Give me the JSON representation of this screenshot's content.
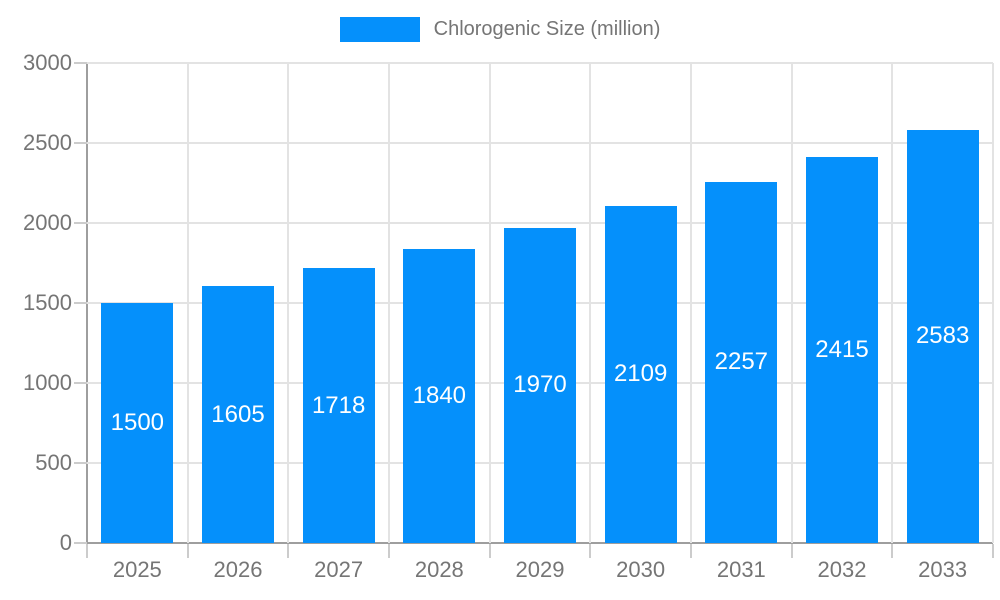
{
  "chart_data": {
    "type": "bar",
    "legend": [
      "Chlorogenic Size (million)"
    ],
    "legend_position": "top",
    "categories": [
      "2025",
      "2026",
      "2027",
      "2028",
      "2029",
      "2030",
      "2031",
      "2032",
      "2033"
    ],
    "values": [
      1500,
      1605,
      1718,
      1840,
      1970,
      2109,
      2257,
      2415,
      2583
    ],
    "xlabel": "",
    "ylabel": "",
    "ylim": [
      0,
      3000
    ],
    "y_ticks": [
      0,
      500,
      1000,
      1500,
      2000,
      2500,
      3000
    ],
    "grid": true,
    "data_labels": "inside-center",
    "bar_color": "#0590fb",
    "data_label_color": "#ffffff",
    "axis_text_color": "#757575"
  }
}
